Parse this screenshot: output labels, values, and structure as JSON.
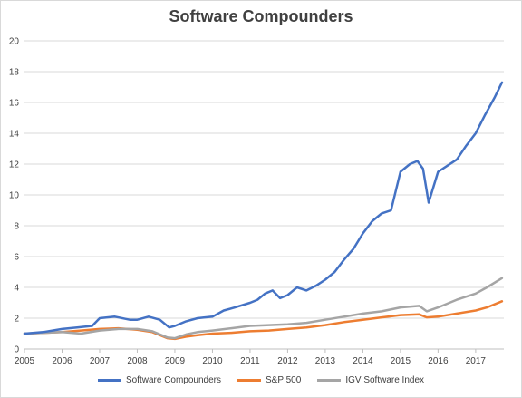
{
  "chart_data": {
    "type": "line",
    "title": "Software Compounders",
    "xlabel": "",
    "ylabel": "",
    "xlim": [
      2005,
      2017.75
    ],
    "ylim": [
      0,
      20
    ],
    "x_ticks": [
      "2005",
      "2006",
      "2007",
      "2008",
      "2009",
      "2010",
      "2011",
      "2012",
      "2013",
      "2014",
      "2015",
      "2016",
      "2017"
    ],
    "y_ticks": [
      "0",
      "2",
      "4",
      "6",
      "8",
      "10",
      "12",
      "14",
      "16",
      "18",
      "20"
    ],
    "grid": "horizontal",
    "legend": "bottom",
    "series": [
      {
        "name": "Software Compounders",
        "color": "#4472c4",
        "x": [
          2005,
          2005.5,
          2006,
          2006.4,
          2006.8,
          2007,
          2007.4,
          2007.8,
          2008,
          2008.3,
          2008.6,
          2008.85,
          2009,
          2009.3,
          2009.6,
          2010,
          2010.3,
          2010.6,
          2011,
          2011.2,
          2011.4,
          2011.6,
          2011.8,
          2012,
          2012.25,
          2012.5,
          2012.75,
          2013,
          2013.25,
          2013.5,
          2013.75,
          2014,
          2014.25,
          2014.5,
          2014.75,
          2015,
          2015.25,
          2015.45,
          2015.6,
          2015.75,
          2016,
          2016.25,
          2016.5,
          2016.75,
          2017,
          2017.25,
          2017.5,
          2017.7
        ],
        "values": [
          1.0,
          1.1,
          1.3,
          1.4,
          1.5,
          2.0,
          2.1,
          1.9,
          1.9,
          2.1,
          1.9,
          1.4,
          1.5,
          1.8,
          2.0,
          2.1,
          2.5,
          2.7,
          3.0,
          3.2,
          3.6,
          3.8,
          3.3,
          3.5,
          4.0,
          3.8,
          4.1,
          4.5,
          5.0,
          5.8,
          6.5,
          7.5,
          8.3,
          8.8,
          9.0,
          11.5,
          12.0,
          12.2,
          11.7,
          9.5,
          11.5,
          11.9,
          12.3,
          13.2,
          14.0,
          15.2,
          16.3,
          17.3
        ]
      },
      {
        "name": "S&P 500",
        "color": "#ed7d31",
        "x": [
          2005,
          2005.5,
          2006,
          2006.5,
          2007,
          2007.5,
          2008,
          2008.4,
          2008.8,
          2009,
          2009.3,
          2009.6,
          2010,
          2010.5,
          2011,
          2011.5,
          2012,
          2012.5,
          2013,
          2013.5,
          2014,
          2014.5,
          2015,
          2015.5,
          2015.7,
          2016,
          2016.5,
          2017,
          2017.3,
          2017.7
        ],
        "values": [
          1.0,
          1.05,
          1.1,
          1.2,
          1.3,
          1.35,
          1.25,
          1.1,
          0.7,
          0.65,
          0.8,
          0.9,
          1.0,
          1.05,
          1.15,
          1.2,
          1.3,
          1.4,
          1.55,
          1.75,
          1.9,
          2.05,
          2.2,
          2.25,
          2.05,
          2.1,
          2.3,
          2.5,
          2.7,
          3.1
        ]
      },
      {
        "name": "IGV Software Index",
        "color": "#a5a5a5",
        "x": [
          2005,
          2005.5,
          2006,
          2006.5,
          2007,
          2007.5,
          2008,
          2008.4,
          2008.8,
          2009,
          2009.3,
          2009.6,
          2010,
          2010.5,
          2011,
          2011.5,
          2012,
          2012.5,
          2013,
          2013.5,
          2014,
          2014.5,
          2015,
          2015.5,
          2015.7,
          2016,
          2016.5,
          2017,
          2017.3,
          2017.7
        ],
        "values": [
          1.0,
          1.05,
          1.1,
          1.0,
          1.2,
          1.3,
          1.3,
          1.15,
          0.75,
          0.7,
          0.95,
          1.1,
          1.2,
          1.35,
          1.5,
          1.55,
          1.6,
          1.7,
          1.9,
          2.1,
          2.3,
          2.45,
          2.7,
          2.8,
          2.45,
          2.7,
          3.2,
          3.6,
          4.0,
          4.6
        ]
      }
    ]
  }
}
